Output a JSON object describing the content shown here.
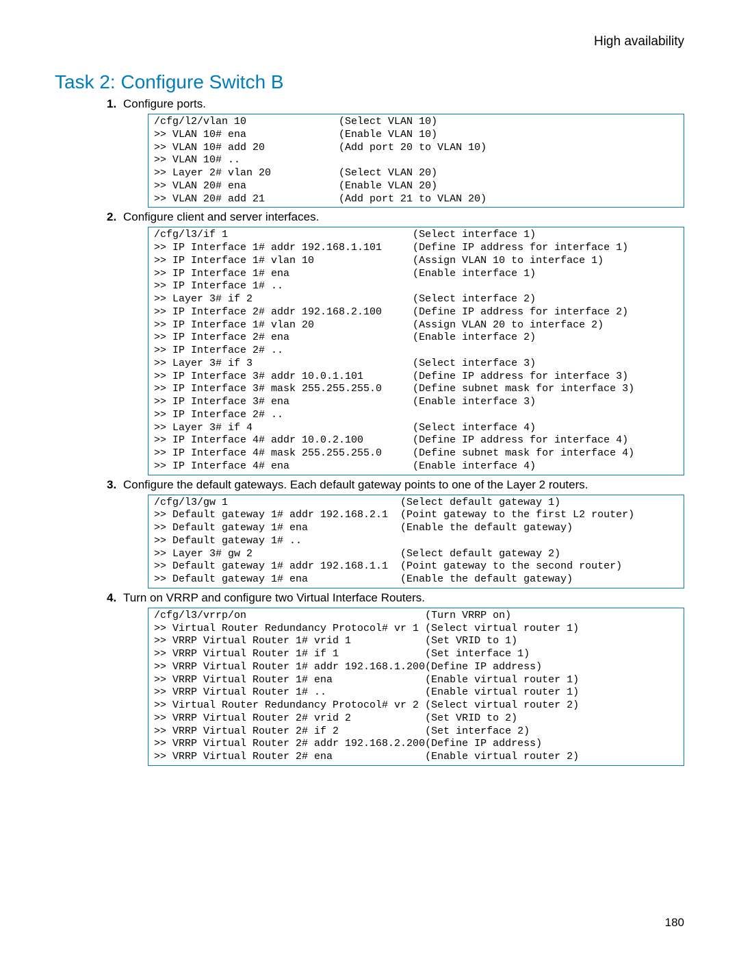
{
  "running_head": "High availability",
  "title": "Task 2: Configure Switch B",
  "page_number": "180",
  "colors": {
    "accent": "#007dba",
    "text": "#000000",
    "background": "#ffffff"
  },
  "steps": [
    {
      "num": "1.",
      "text": "Configure ports.",
      "code": "/cfg/l2/vlan 10               (Select VLAN 10)\n>> VLAN 10# ena               (Enable VLAN 10)\n>> VLAN 10# add 20            (Add port 20 to VLAN 10)\n>> VLAN 10# ..\n>> Layer 2# vlan 20           (Select VLAN 20)\n>> VLAN 20# ena               (Enable VLAN 20)\n>> VLAN 20# add 21            (Add port 21 to VLAN 20)"
    },
    {
      "num": "2.",
      "text": "Configure client and server interfaces.",
      "code": "/cfg/l3/if 1                              (Select interface 1)\n>> IP Interface 1# addr 192.168.1.101     (Define IP address for interface 1)\n>> IP Interface 1# vlan 10                (Assign VLAN 10 to interface 1)\n>> IP Interface 1# ena                    (Enable interface 1)\n>> IP Interface 1# ..\n>> Layer 3# if 2                          (Select interface 2)\n>> IP Interface 2# addr 192.168.2.100     (Define IP address for interface 2)\n>> IP Interface 1# vlan 20                (Assign VLAN 20 to interface 2)\n>> IP Interface 2# ena                    (Enable interface 2)\n>> IP Interface 2# ..\n>> Layer 3# if 3                          (Select interface 3)\n>> IP Interface 3# addr 10.0.1.101        (Define IP address for interface 3)\n>> IP Interface 3# mask 255.255.255.0     (Define subnet mask for interface 3)\n>> IP Interface 3# ena                    (Enable interface 3)\n>> IP Interface 2# ..\n>> Layer 3# if 4                          (Select interface 4)\n>> IP Interface 4# addr 10.0.2.100        (Define IP address for interface 4)\n>> IP Interface 4# mask 255.255.255.0     (Define subnet mask for interface 4)\n>> IP Interface 4# ena                    (Enable interface 4)"
    },
    {
      "num": "3.",
      "text": "Configure the default gateways. Each default gateway points to one of the Layer 2 routers.",
      "code": "/cfg/l3/gw 1                            (Select default gateway 1)\n>> Default gateway 1# addr 192.168.2.1  (Point gateway to the first L2 router)\n>> Default gateway 1# ena               (Enable the default gateway)\n>> Default gateway 1# ..\n>> Layer 3# gw 2                        (Select default gateway 2)\n>> Default gateway 1# addr 192.168.1.1  (Point gateway to the second router)\n>> Default gateway 1# ena               (Enable the default gateway)"
    },
    {
      "num": "4.",
      "text": "Turn on VRRP and configure two Virtual Interface Routers.",
      "code": "/cfg/l3/vrrp/on                             (Turn VRRP on)\n>> Virtual Router Redundancy Protocol# vr 1 (Select virtual router 1)\n>> VRRP Virtual Router 1# vrid 1            (Set VRID to 1)\n>> VRRP Virtual Router 1# if 1              (Set interface 1)\n>> VRRP Virtual Router 1# addr 192.168.1.200(Define IP address)\n>> VRRP Virtual Router 1# ena               (Enable virtual router 1)\n>> VRRP Virtual Router 1# ..                (Enable virtual router 1)\n>> Virtual Router Redundancy Protocol# vr 2 (Select virtual router 2)\n>> VRRP Virtual Router 2# vrid 2            (Set VRID to 2)\n>> VRRP Virtual Router 2# if 2              (Set interface 2)\n>> VRRP Virtual Router 2# addr 192.168.2.200(Define IP address)\n>> VRRP Virtual Router 2# ena               (Enable virtual router 2)"
    }
  ]
}
